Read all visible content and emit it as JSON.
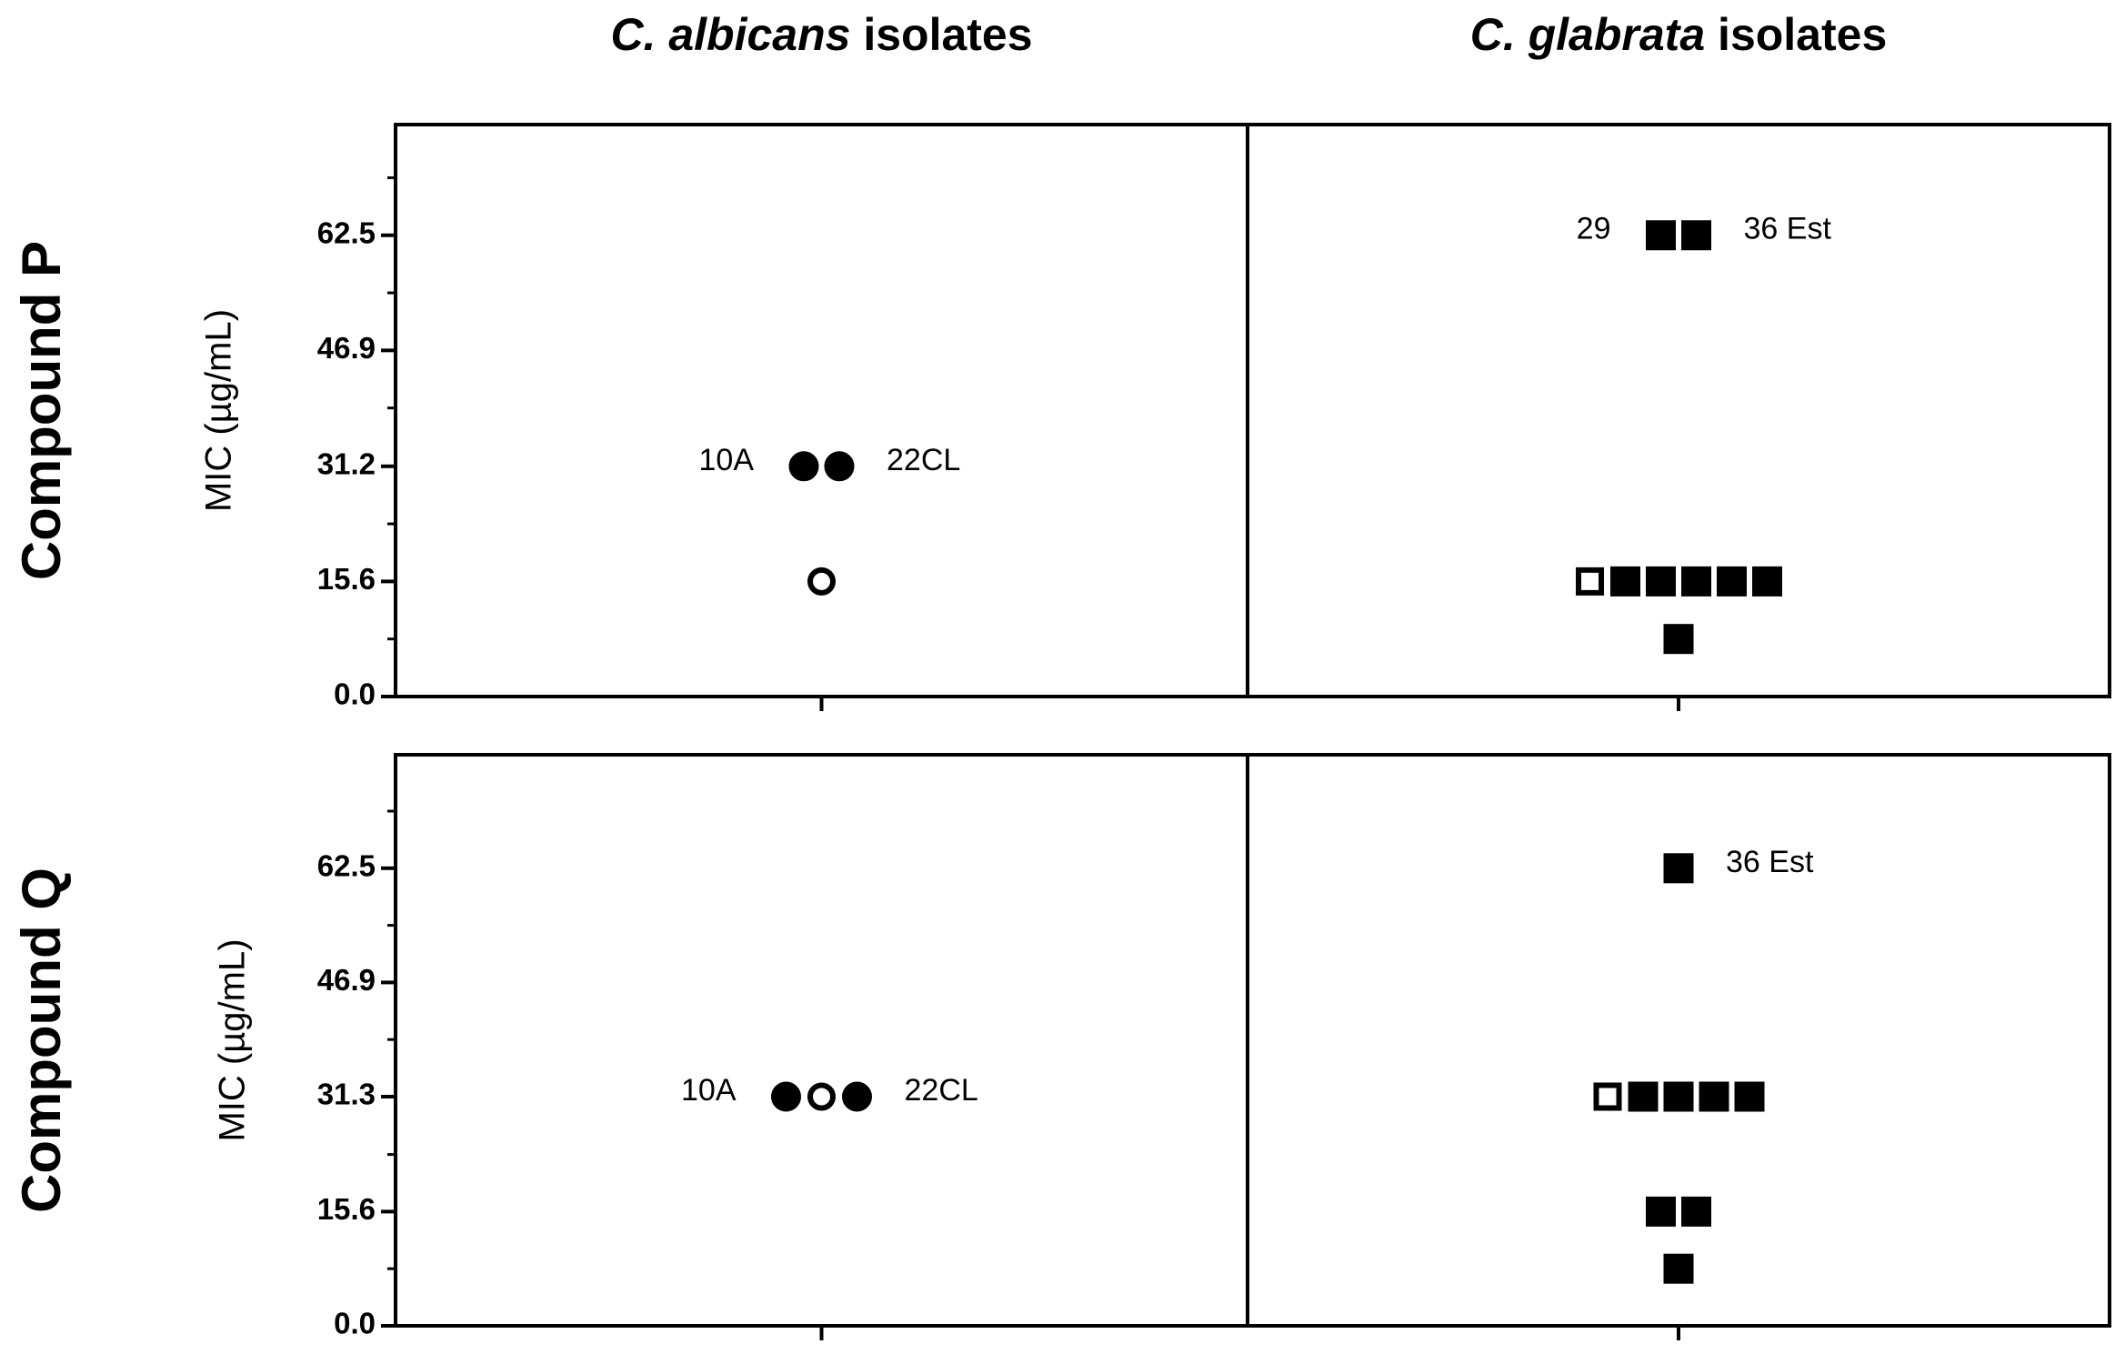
{
  "columns": [
    {
      "italic": "C. albicans",
      "text": "isolates"
    },
    {
      "italic": "C. glabrata",
      "text": "isolates"
    }
  ],
  "chart_data": [
    {
      "type": "scatter",
      "title": "Compound P",
      "ylabel": "MIC (µg/mL)",
      "ylim": [
        0,
        77.5
      ],
      "yticks": [
        {
          "value": 0,
          "label": "0.0"
        },
        15.6,
        31.2,
        46.9,
        62.5
      ],
      "yminor": [
        7.8,
        23.4,
        39.1,
        54.7,
        70.3
      ],
      "series": [
        {
          "marker": "circle",
          "color": "#000000",
          "values": [
            31.2,
            31.2,
            15.6
          ],
          "filled": [
            true,
            true,
            false
          ],
          "point_labels": [
            "10A",
            "22CL",
            null
          ]
        },
        {
          "marker": "square",
          "color": "#000000",
          "values": [
            62.5,
            62.5,
            15.6,
            15.6,
            15.6,
            15.6,
            15.6,
            15.6,
            7.8
          ],
          "filled": [
            true,
            true,
            false,
            true,
            true,
            true,
            true,
            true,
            true
          ],
          "point_labels": [
            "29",
            "36 Est",
            null,
            null,
            null,
            null,
            null,
            null,
            null
          ]
        }
      ]
    },
    {
      "type": "scatter",
      "title": "Compound Q",
      "ylabel": "MIC (µg/mL)",
      "ylim": [
        0,
        78
      ],
      "yticks": [
        {
          "value": 0,
          "label": "0.0"
        },
        15.6,
        31.3,
        46.9,
        62.5
      ],
      "yminor": [
        7.8,
        23.4,
        39.1,
        54.7,
        70.3
      ],
      "series": [
        {
          "marker": "circle",
          "color": "#000000",
          "values": [
            31.3,
            31.3,
            31.3
          ],
          "filled": [
            true,
            false,
            true
          ],
          "point_labels": [
            "10A",
            null,
            "22CL"
          ]
        },
        {
          "marker": "square",
          "color": "#000000",
          "values": [
            62.5,
            31.3,
            31.3,
            31.3,
            31.3,
            31.3,
            15.6,
            15.6,
            7.8
          ],
          "filled": [
            true,
            false,
            true,
            true,
            true,
            true,
            true,
            true,
            true
          ],
          "point_labels": [
            "36 Est",
            null,
            null,
            null,
            null,
            null,
            null,
            null,
            null
          ]
        }
      ]
    }
  ]
}
